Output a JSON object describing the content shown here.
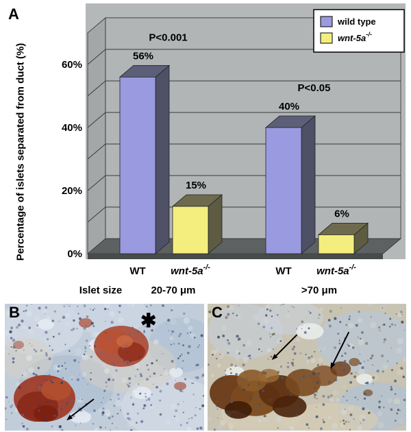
{
  "panels": {
    "a": {
      "label": "A"
    },
    "b": {
      "label": "B",
      "asterisk": "✱"
    },
    "c": {
      "label": "C"
    }
  },
  "chart_data": {
    "type": "bar",
    "title": "",
    "ylabel": "Percentage of islets separated from duct (%)",
    "ylim": [
      0,
      70
    ],
    "ytick_values": [
      0,
      20,
      40,
      60
    ],
    "ytick_labels": [
      "0%",
      "20%",
      "40%",
      "60%"
    ],
    "gridline_step": 10,
    "grid": true,
    "legend_position": "top-right",
    "x_row_label": "Islet size",
    "series": [
      {
        "name": "wild type",
        "italic": false,
        "sup": "",
        "front": "#9a9ae0",
        "top": "#5d5f78",
        "side": "#4e5066"
      },
      {
        "name": "wnt-5a",
        "italic": true,
        "sup": "-/-",
        "front": "#f4ee7e",
        "top": "#6d6a4e",
        "side": "#5d5b41"
      }
    ],
    "groups": [
      {
        "size_label": "20-70 μm",
        "p_label": "P<0.001",
        "bars": [
          {
            "category": "WT",
            "italic": false,
            "sup": "",
            "series": 0,
            "value": 56,
            "value_label": "56%"
          },
          {
            "category": "wnt-5a",
            "italic": true,
            "sup": "-/-",
            "series": 1,
            "value": 15,
            "value_label": "15%"
          }
        ]
      },
      {
        "size_label": ">70 μm",
        "p_label": "P<0.05",
        "bars": [
          {
            "category": "WT",
            "italic": false,
            "sup": "",
            "series": 0,
            "value": 40,
            "value_label": "40%"
          },
          {
            "category": "wnt-5a",
            "italic": true,
            "sup": "-/-",
            "series": 1,
            "value": 6,
            "value_label": "6%"
          }
        ]
      }
    ]
  },
  "colors": {
    "chart_bg": "#b5b8b8",
    "wall_top": "#abaeae",
    "wall_left": "#a4a7a7",
    "wall_back": "#b2b5b5",
    "floor": "#5d6161",
    "floor_front": "#474b4b",
    "grid": "#3a3a3a",
    "legend_bg": "#ffffff",
    "legend_border": "#000000"
  }
}
